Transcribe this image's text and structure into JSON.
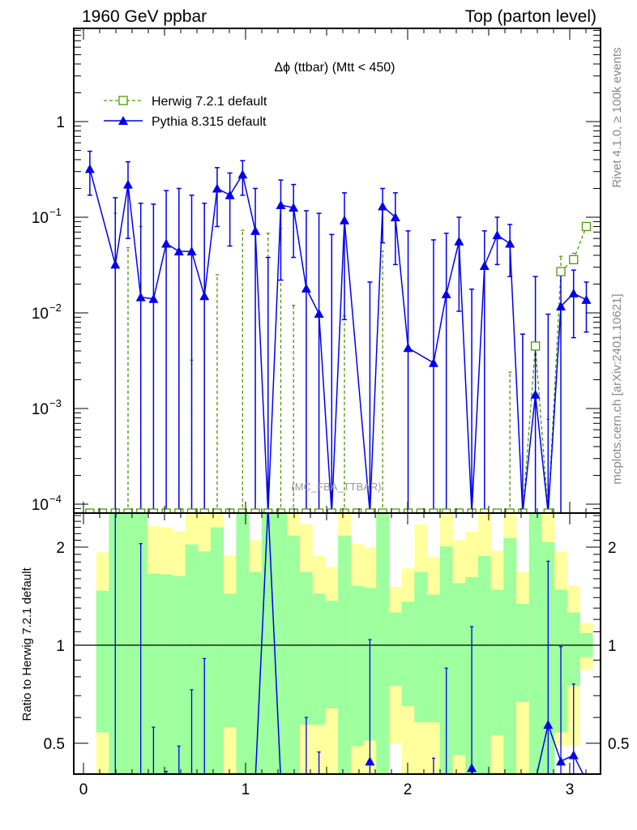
{
  "header": {
    "left": "1960 GeV ppbar",
    "right": "Top (parton level)"
  },
  "side_labels": {
    "rivet": "Rivet 4.1.0, ≥ 100k events",
    "mcplots": "mcplots.cern.ch [arXiv:2401.10621]"
  },
  "watermark": "(MC_FBA_TTBAR)",
  "colors": {
    "herwig": "#4a9a00",
    "pythia": "#0000ee",
    "band_inner": "#9dff9d",
    "band_outer": "#ffff9d"
  },
  "chart_data": [
    {
      "type": "line",
      "title": "Δϕ (ttbar) (Mtt < 450)",
      "xlabel": "",
      "ylabel": "",
      "xlim": [
        -0.06,
        3.19
      ],
      "ylim": [
        8.2e-05,
        9.4
      ],
      "yscale": "log",
      "x_ticks": [
        "0",
        "1",
        "2",
        "3"
      ],
      "y_ticks": [
        {
          "value": 1,
          "base": "1",
          "exp": ""
        },
        {
          "value": 0.1,
          "base": "10",
          "exp": "−1"
        },
        {
          "value": 0.01,
          "base": "10",
          "exp": "−2"
        },
        {
          "value": 0.001,
          "base": "10",
          "exp": "−3"
        },
        {
          "value": 0.0001,
          "base": "10",
          "exp": "−4"
        }
      ],
      "legend_position": "top-left",
      "bins": {
        "count": 40,
        "min": 0,
        "max": 3.14159
      },
      "series": [
        {
          "name": "Herwig 7.2.1 default",
          "style": "dashed-open-square",
          "values": [
            0,
            0,
            0,
            0,
            0,
            0,
            0,
            0,
            0,
            0,
            0,
            0,
            0,
            0,
            0,
            0,
            0,
            0,
            0,
            0,
            0,
            0,
            0,
            0,
            0,
            0,
            0,
            0,
            0,
            0,
            0,
            0,
            0,
            0,
            0,
            0.0045,
            0,
            0.027,
            0.036,
            0.08
          ],
          "err_upper": [
            null,
            null,
            0.11,
            0.048,
            0.08,
            null,
            null,
            null,
            0.0032,
            null,
            0.025,
            null,
            0.073,
            null,
            0.068,
            0.076,
            0.012,
            null,
            null,
            null,
            0.0093,
            null,
            null,
            0.044,
            null,
            null,
            null,
            null,
            null,
            null,
            null,
            null,
            null,
            0.0024,
            null,
            null,
            0.00077,
            0.039,
            0.042,
            null
          ]
        },
        {
          "name": "Pythia 8.315 default",
          "style": "solid-filled-triangle",
          "values": [
            0.32,
            null,
            0.032,
            0.22,
            0.0146,
            0.014,
            0.053,
            0.044,
            0.044,
            0.015,
            0.2,
            0.17,
            0.28,
            0.072,
            0,
            0.134,
            0.126,
            0.018,
            0.0098,
            0,
            0.093,
            null,
            0,
            0.13,
            0.1,
            0.0043,
            null,
            0.003,
            0.0157,
            0.056,
            0,
            0.031,
            0.065,
            0.053,
            0,
            0.0014,
            0,
            0.0117,
            0.016,
            0.0137
          ],
          "err_upper": [
            0.49,
            null,
            0.16,
            0.38,
            0.14,
            0.137,
            0.19,
            0.2,
            0.17,
            0.14,
            0.33,
            0.29,
            0.39,
            0.2,
            0.038,
            0.245,
            0.22,
            0.117,
            0.11,
            0.066,
            0.18,
            null,
            0.021,
            0.2,
            0.18,
            0.072,
            null,
            0.058,
            0.068,
            0.1,
            0.0177,
            0.072,
            0.1,
            0.084,
            0.006,
            0.024,
            0.0097,
            0.026,
            0.028,
            0.021
          ],
          "err_lower": [
            0.17,
            null,
            0,
            0.06,
            0,
            0,
            0,
            0,
            0,
            0,
            0.08,
            0.05,
            0.17,
            0,
            0,
            0.022,
            0.038,
            0,
            0,
            0,
            0.0085,
            null,
            0,
            0.054,
            0.032,
            0,
            null,
            0,
            0,
            0.0104,
            0,
            0,
            0.032,
            0.024,
            0,
            0,
            0,
            0,
            0.0055,
            0.0063
          ]
        }
      ]
    },
    {
      "type": "line",
      "title": "",
      "xlabel": "",
      "ylabel": "Ratio to Herwig 7.2.1 default",
      "xlim": [
        -0.06,
        3.19
      ],
      "ylim": [
        0.4,
        2.56
      ],
      "yscale": "log",
      "x_ticks": [
        "0",
        "1",
        "2",
        "3"
      ],
      "y_ticks": [
        {
          "value": 2,
          "label": "2"
        },
        {
          "value": 1,
          "label": "1"
        },
        {
          "value": 0.5,
          "label": "0.5"
        }
      ],
      "reference_line": 1,
      "band": {
        "description": "per-bin [outer_low, inner_low, inner_high, outer_high]",
        "values": [
          null,
          [
            0.3,
            0.54,
            1.47,
            1.93
          ],
          [
            0.3,
            0.3,
            3,
            3
          ],
          [
            0.3,
            0.3,
            3,
            3
          ],
          [
            0.3,
            0.3,
            3,
            3
          ],
          [
            0.3,
            0.3,
            1.66,
            2.32
          ],
          [
            0.3,
            0.3,
            1.65,
            2.3
          ],
          [
            0.3,
            0.3,
            1.63,
            2.24
          ],
          [
            0.3,
            0.3,
            2.04,
            3
          ],
          [
            0.3,
            0.3,
            1.94,
            3
          ],
          [
            0.3,
            0.3,
            2.3,
            3
          ],
          [
            0.3,
            0.56,
            1.44,
            1.89
          ],
          [
            0.3,
            0.3,
            3,
            3
          ],
          [
            0.3,
            0.3,
            1.68,
            2.1
          ],
          [
            0.3,
            0.3,
            3,
            3
          ],
          [
            0.3,
            0.3,
            3,
            3
          ],
          [
            0.3,
            0.3,
            2.17,
            3
          ],
          [
            0.3,
            0.57,
            1.68,
            2.35
          ],
          [
            0.3,
            0.57,
            1.44,
            1.88
          ],
          [
            0.3,
            0.64,
            1.37,
            1.74
          ],
          [
            0.3,
            0.3,
            2.17,
            3
          ],
          [
            0.3,
            0.49,
            1.52,
            2.05
          ],
          [
            0.3,
            0.51,
            1.5,
            2.0
          ],
          [
            0.3,
            0.3,
            3,
            3
          ],
          [
            0.5,
            0.75,
            1.26,
            1.51
          ],
          [
            0.3,
            0.65,
            1.36,
            1.72
          ],
          [
            0.3,
            0.58,
            1.68,
            2.35
          ],
          [
            0.3,
            0.58,
            1.43,
            1.87
          ],
          [
            0.3,
            0.3,
            2.01,
            3
          ],
          [
            0.3,
            0.46,
            1.55,
            2.1
          ],
          [
            0.3,
            0.3,
            1.62,
            2.23
          ],
          [
            0.3,
            0.3,
            1.88,
            3
          ],
          [
            0.3,
            0.53,
            1.48,
            1.95
          ],
          [
            0.3,
            0.3,
            2.13,
            3
          ],
          [
            0.3,
            0.67,
            1.34,
            1.68
          ],
          [
            0.3,
            0.3,
            3,
            3
          ],
          [
            0.3,
            0.3,
            2.07,
            3
          ],
          [
            0.49,
            0.54,
            1.48,
            1.94
          ],
          [
            0.49,
            0.75,
            1.26,
            1.52
          ],
          [
            0.84,
            0.92,
            1.09,
            1.17
          ]
        ]
      },
      "series": [
        {
          "name": "Pythia 8.315 default / Herwig 7.2.1 default",
          "values": [
            null,
            null,
            null,
            null,
            null,
            null,
            null,
            null,
            null,
            null,
            null,
            null,
            null,
            0.2,
            5,
            0.2,
            null,
            null,
            null,
            null,
            null,
            null,
            0.44,
            null,
            null,
            null,
            null,
            null,
            null,
            null,
            0.42,
            null,
            null,
            null,
            null,
            0.2,
            0.57,
            0.44,
            0.46,
            0.2
          ],
          "err_upper": [
            null,
            null,
            5,
            null,
            2.05,
            0.56,
            0.41,
            0.49,
            0.73,
            0.91,
            null,
            null,
            null,
            null,
            null,
            null,
            null,
            0.6,
            0.47,
            null,
            null,
            null,
            1.04,
            null,
            null,
            null,
            null,
            0.45,
            0.85,
            null,
            1.14,
            null,
            null,
            null,
            null,
            null,
            1.81,
            0.99,
            0.76,
            null
          ]
        }
      ]
    }
  ]
}
